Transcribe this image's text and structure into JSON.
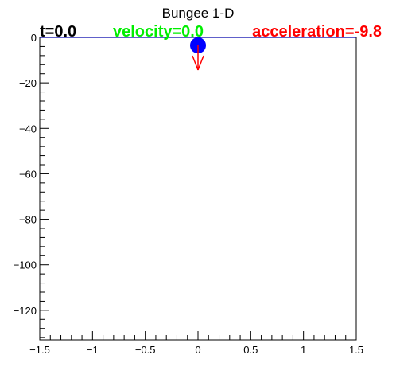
{
  "title": "Bungee 1-D",
  "readouts": {
    "time": "t=0.0",
    "velocity": "velocity=0.0",
    "acceleration": "acceleration=-9.8"
  },
  "colors": {
    "time": "#000000",
    "velocity": "#00ee00",
    "acceleration": "#ff0000",
    "ball": "#0000ff",
    "rope": "#0000aa",
    "arrow": "#ff0000"
  },
  "chart_data": {
    "type": "scatter",
    "title": "Bungee 1-D",
    "xlabel": "",
    "ylabel": "",
    "xlim": [
      -1.5,
      1.5
    ],
    "ylim": [
      -133,
      0
    ],
    "x_ticks": [
      -1.5,
      -1,
      -0.5,
      0,
      0.5,
      1,
      1.5
    ],
    "x_tick_labels": [
      "−1.5",
      "−1",
      "−0.5",
      "0",
      "0.5",
      "1",
      "1.5"
    ],
    "y_ticks": [
      0,
      -20,
      -40,
      -60,
      -80,
      -100,
      -120
    ],
    "y_tick_labels": [
      "0",
      "−20",
      "−40",
      "−60",
      "−80",
      "−100",
      "−120"
    ],
    "grid": false,
    "series": [
      {
        "x": [
          0
        ],
        "y": [
          0
        ]
      }
    ],
    "annotations": {
      "acceleration_arrow": {
        "x": 0,
        "y_from": 0,
        "y_to": -9.8
      }
    }
  }
}
